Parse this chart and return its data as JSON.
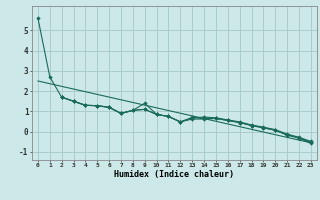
{
  "xlabel": "Humidex (Indice chaleur)",
  "background_color": "#cce8e8",
  "grid_color": "#aacccc",
  "line_color": "#1a6b5a",
  "xlim": [
    -0.5,
    23.5
  ],
  "ylim": [
    -1.4,
    6.2
  ],
  "yticks": [
    -1,
    0,
    1,
    2,
    3,
    4,
    5
  ],
  "xticks": [
    0,
    1,
    2,
    3,
    4,
    5,
    6,
    7,
    8,
    9,
    10,
    11,
    12,
    13,
    14,
    15,
    16,
    17,
    18,
    19,
    20,
    21,
    22,
    23
  ],
  "series1": [
    [
      0,
      5.6
    ],
    [
      1,
      2.7
    ],
    [
      2,
      1.7
    ],
    [
      3,
      1.5
    ],
    [
      4,
      1.3
    ],
    [
      5,
      1.28
    ],
    [
      6,
      1.2
    ],
    [
      7,
      0.9
    ],
    [
      8,
      1.05
    ],
    [
      9,
      1.4
    ],
    [
      10,
      0.85
    ],
    [
      11,
      0.75
    ],
    [
      12,
      0.48
    ],
    [
      13,
      0.7
    ],
    [
      14,
      0.65
    ],
    [
      15,
      0.65
    ],
    [
      16,
      0.55
    ],
    [
      17,
      0.45
    ],
    [
      18,
      0.3
    ],
    [
      19,
      0.18
    ],
    [
      20,
      0.08
    ],
    [
      21,
      -0.18
    ],
    [
      22,
      -0.32
    ],
    [
      23,
      -0.58
    ]
  ],
  "series2": [
    [
      2,
      1.7
    ],
    [
      3,
      1.5
    ],
    [
      4,
      1.3
    ],
    [
      5,
      1.28
    ],
    [
      6,
      1.2
    ],
    [
      7,
      0.9
    ],
    [
      8,
      1.05
    ],
    [
      9,
      1.1
    ],
    [
      10,
      0.85
    ],
    [
      11,
      0.75
    ],
    [
      12,
      0.48
    ],
    [
      13,
      0.68
    ],
    [
      14,
      0.72
    ],
    [
      15,
      0.68
    ],
    [
      16,
      0.58
    ],
    [
      17,
      0.48
    ],
    [
      18,
      0.33
    ],
    [
      19,
      0.22
    ],
    [
      20,
      0.1
    ],
    [
      21,
      -0.12
    ],
    [
      22,
      -0.28
    ],
    [
      23,
      -0.48
    ]
  ],
  "series3": [
    [
      2,
      1.7
    ],
    [
      3,
      1.5
    ],
    [
      4,
      1.3
    ],
    [
      5,
      1.28
    ],
    [
      6,
      1.2
    ],
    [
      7,
      0.9
    ],
    [
      8,
      1.05
    ],
    [
      9,
      1.1
    ],
    [
      10,
      0.85
    ],
    [
      11,
      0.75
    ],
    [
      12,
      0.48
    ],
    [
      13,
      0.62
    ],
    [
      14,
      0.62
    ],
    [
      15,
      0.65
    ],
    [
      16,
      0.55
    ],
    [
      17,
      0.45
    ],
    [
      18,
      0.3
    ],
    [
      19,
      0.2
    ],
    [
      20,
      0.06
    ],
    [
      21,
      -0.15
    ],
    [
      22,
      -0.3
    ],
    [
      23,
      -0.52
    ]
  ],
  "regline_x": [
    0,
    23
  ],
  "regline_y": [
    2.5,
    -0.55
  ]
}
